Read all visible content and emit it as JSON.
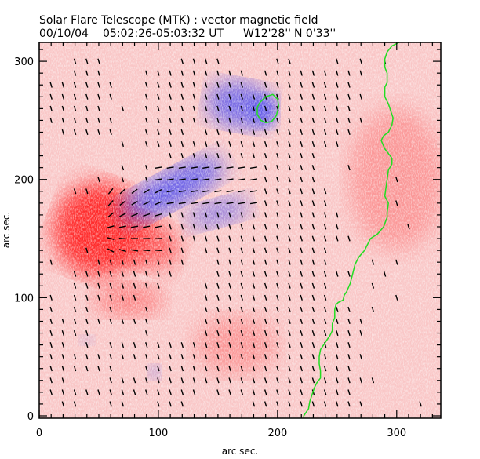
{
  "chart_data": {
    "type": "heatmap",
    "title": "Solar Flare Telescope (MTK) : vector magnetic field",
    "subtitle_date": "00/10/04",
    "subtitle_time": "05:02:26-05:03:32 UT",
    "subtitle_position_w": "W12'28''",
    "subtitle_position_n": "N 0'33''",
    "xlabel": "arc sec.",
    "ylabel": "arc sec.",
    "xlim": [
      0,
      337
    ],
    "ylim": [
      -2,
      316
    ],
    "xticks": [
      0,
      100,
      200,
      300
    ],
    "yticks": [
      0,
      100,
      200,
      300
    ],
    "xtick_labels": [
      "0",
      "100",
      "200",
      "300"
    ],
    "ytick_labels": [
      "0",
      "100",
      "200",
      "300"
    ],
    "minor_tick_step": 10,
    "colors": {
      "positive_polarity": "#ff2a2a",
      "negative_polarity": "#4a4af0",
      "background_positive": "#f7b8b8",
      "contour": "#22dd22",
      "vectors": "#000000"
    },
    "polarity_regions": [
      {
        "name": "positive-core",
        "polarity": "positive",
        "cx": 50,
        "cy": 158,
        "rx": 38,
        "ry": 40,
        "angle": 20,
        "strength": 1.0
      },
      {
        "name": "positive-tail",
        "polarity": "positive",
        "cx": 80,
        "cy": 150,
        "rx": 40,
        "ry": 22,
        "angle": 20,
        "strength": 0.7
      },
      {
        "name": "positive-weak-south",
        "polarity": "positive",
        "cx": 75,
        "cy": 98,
        "rx": 30,
        "ry": 14,
        "angle": 0,
        "strength": 0.45
      },
      {
        "name": "positive-weak-east",
        "polarity": "positive",
        "cx": 300,
        "cy": 200,
        "rx": 40,
        "ry": 60,
        "angle": 0,
        "strength": 0.3
      },
      {
        "name": "positive-weak-mid",
        "polarity": "positive",
        "cx": 165,
        "cy": 60,
        "rx": 35,
        "ry": 25,
        "angle": 0,
        "strength": 0.3
      },
      {
        "name": "negative-main",
        "polarity": "negative",
        "cx": 112,
        "cy": 192,
        "rx": 48,
        "ry": 15,
        "angle": -28,
        "strength": 0.85
      },
      {
        "name": "negative-tail",
        "polarity": "negative",
        "cx": 150,
        "cy": 172,
        "rx": 28,
        "ry": 11,
        "angle": -15,
        "strength": 0.6
      },
      {
        "name": "negative-north",
        "polarity": "negative",
        "cx": 168,
        "cy": 263,
        "rx": 28,
        "ry": 20,
        "angle": 10,
        "strength": 0.75
      },
      {
        "name": "negative-north-core",
        "polarity": "negative",
        "cx": 188,
        "cy": 258,
        "rx": 12,
        "ry": 14,
        "angle": 0,
        "strength": 0.7
      },
      {
        "name": "negative-small-1",
        "polarity": "negative",
        "cx": 97,
        "cy": 37,
        "rx": 5,
        "ry": 6,
        "angle": 0,
        "strength": 0.5
      },
      {
        "name": "negative-small-2",
        "polarity": "negative",
        "cx": 40,
        "cy": 64,
        "rx": 6,
        "ry": 4,
        "angle": 0,
        "strength": 0.3
      }
    ],
    "neutral_line_contour": [
      [
        302,
        316
      ],
      [
        296,
        313
      ],
      [
        292,
        308
      ],
      [
        290,
        302
      ],
      [
        290,
        295
      ],
      [
        292,
        290
      ],
      [
        292,
        282
      ],
      [
        290,
        278
      ],
      [
        290,
        270
      ],
      [
        293,
        264
      ],
      [
        295,
        258
      ],
      [
        297,
        252
      ],
      [
        296,
        246
      ],
      [
        293,
        240
      ],
      [
        289,
        237
      ],
      [
        287,
        233
      ],
      [
        290,
        226
      ],
      [
        293,
        222
      ],
      [
        296,
        218
      ],
      [
        296,
        213
      ],
      [
        293,
        208
      ],
      [
        292,
        200
      ],
      [
        291,
        193
      ],
      [
        290,
        186
      ],
      [
        293,
        180
      ],
      [
        292,
        172
      ],
      [
        292,
        168
      ],
      [
        289,
        160
      ],
      [
        284,
        154
      ],
      [
        278,
        150
      ],
      [
        273,
        140
      ],
      [
        268,
        134
      ],
      [
        265,
        128
      ],
      [
        263,
        120
      ],
      [
        261,
        112
      ],
      [
        258,
        105
      ],
      [
        256,
        102
      ],
      [
        255,
        98
      ],
      [
        251,
        96
      ],
      [
        249,
        94
      ],
      [
        248,
        90
      ],
      [
        248,
        83
      ],
      [
        246,
        78
      ],
      [
        246,
        72
      ],
      [
        244,
        68
      ],
      [
        240,
        62
      ],
      [
        236,
        56
      ],
      [
        235,
        50
      ],
      [
        235,
        44
      ],
      [
        236,
        38
      ],
      [
        236,
        32
      ],
      [
        233,
        28
      ],
      [
        231,
        24
      ],
      [
        229,
        18
      ],
      [
        227,
        12
      ],
      [
        226,
        6
      ],
      [
        222,
        0
      ],
      [
        222,
        -2
      ]
    ],
    "neutral_line_loop": [
      [
        185,
        265
      ],
      [
        190,
        270
      ],
      [
        196,
        272
      ],
      [
        200,
        268
      ],
      [
        201,
        262
      ],
      [
        199,
        254
      ],
      [
        195,
        249
      ],
      [
        190,
        248
      ],
      [
        186,
        250
      ],
      [
        183,
        255
      ],
      [
        183,
        261
      ],
      [
        185,
        265
      ]
    ],
    "vectors": {
      "grid_step": 10,
      "rows": [
        {
          "y": 300,
          "xs": [
            30,
            40,
            50,
            120,
            130,
            140,
            150,
            200,
            210,
            250,
            270,
            290
          ]
        },
        {
          "y": 290,
          "xs": [
            30,
            40,
            50,
            90,
            100,
            110,
            120,
            130,
            140,
            150,
            160,
            170,
            190,
            200,
            210,
            220,
            230,
            240,
            250,
            260,
            270
          ]
        },
        {
          "y": 280,
          "xs": [
            10,
            20,
            30,
            40,
            50,
            60,
            90,
            100,
            110,
            120,
            130,
            140,
            150,
            160,
            170,
            190,
            200,
            210,
            220,
            230,
            240,
            250,
            260
          ]
        },
        {
          "y": 270,
          "xs": [
            10,
            20,
            30,
            40,
            50,
            60,
            90,
            100,
            110,
            120,
            130,
            140,
            150,
            160,
            170,
            180,
            190,
            200,
            210,
            220,
            230,
            240,
            250,
            260,
            270
          ]
        },
        {
          "y": 260,
          "xs": [
            10,
            20,
            30,
            40,
            50,
            70,
            90,
            100,
            110,
            120,
            130,
            140,
            150,
            160,
            170,
            180,
            190,
            200,
            210,
            220,
            230,
            240,
            250,
            260
          ]
        },
        {
          "y": 250,
          "xs": [
            10,
            20,
            30,
            40,
            50,
            60,
            90,
            100,
            110,
            120,
            130,
            140,
            150,
            160,
            170,
            180,
            190,
            200,
            210,
            220,
            230,
            240,
            250,
            260,
            270
          ]
        },
        {
          "y": 240,
          "xs": [
            20,
            30,
            40,
            50,
            60,
            90,
            100,
            110,
            120,
            140,
            150,
            160,
            170,
            180,
            190,
            200,
            210,
            220,
            230,
            240,
            250,
            260
          ]
        },
        {
          "y": 230,
          "xs": [
            70,
            90,
            100,
            110,
            120,
            130,
            140,
            150,
            160,
            170,
            180,
            190,
            200,
            210,
            220,
            230,
            240,
            250
          ]
        },
        {
          "y": 220,
          "xs": [
            110,
            120,
            130,
            140,
            150,
            160,
            170,
            180,
            190,
            200,
            210,
            220,
            230
          ]
        },
        {
          "y": 210,
          "xs": [
            70,
            90,
            100,
            110,
            120,
            130,
            140,
            150,
            160,
            170,
            180,
            190,
            200,
            210,
            220,
            230,
            260
          ]
        },
        {
          "y": 200,
          "xs": [
            50,
            70,
            90,
            100,
            110,
            120,
            130,
            140,
            150,
            160,
            170,
            180,
            190,
            200,
            210,
            220,
            230,
            300
          ]
        },
        {
          "y": 190,
          "xs": [
            30,
            40,
            60,
            70,
            80,
            90,
            100,
            110,
            120,
            130,
            140,
            150,
            160,
            170,
            180,
            190,
            200,
            210,
            220,
            230,
            240
          ]
        },
        {
          "y": 180,
          "xs": [
            60,
            70,
            80,
            90,
            100,
            110,
            120,
            130,
            140,
            150,
            160,
            170,
            180,
            190,
            200,
            210,
            220,
            230,
            240,
            300
          ]
        },
        {
          "y": 170,
          "xs": [
            60,
            70,
            80,
            90,
            100,
            110,
            120,
            130,
            140,
            150,
            160,
            170,
            180,
            190,
            200,
            210,
            220,
            230,
            240,
            250
          ]
        },
        {
          "y": 160,
          "xs": [
            60,
            70,
            80,
            90,
            100,
            110,
            120,
            130,
            140,
            150,
            160,
            170,
            180,
            190,
            200,
            210,
            220,
            230,
            240,
            250,
            310
          ]
        },
        {
          "y": 150,
          "xs": [
            60,
            70,
            80,
            90,
            100,
            110,
            120,
            130,
            140,
            150,
            160,
            170,
            180,
            190,
            200,
            210,
            220,
            230,
            240,
            250,
            260
          ]
        },
        {
          "y": 140,
          "xs": [
            40,
            60,
            70,
            80,
            90,
            100,
            110,
            120,
            140,
            150,
            160,
            170,
            180,
            190,
            200,
            210,
            220,
            230,
            240
          ]
        },
        {
          "y": 130,
          "xs": [
            10,
            50,
            60,
            70,
            80,
            90,
            100,
            110,
            120,
            150,
            160,
            170,
            180,
            190,
            200,
            210,
            220,
            230,
            240,
            280,
            300
          ]
        },
        {
          "y": 120,
          "xs": [
            30,
            40,
            50,
            60,
            70,
            80,
            90,
            100,
            110,
            150,
            160,
            170,
            180,
            190,
            200,
            210,
            220,
            230,
            240,
            250,
            260,
            290
          ]
        },
        {
          "y": 110,
          "xs": [
            30,
            40,
            50,
            60,
            70,
            80,
            90,
            100,
            140,
            150,
            160,
            170,
            180,
            190,
            200,
            210,
            220,
            230,
            240,
            280
          ]
        },
        {
          "y": 100,
          "xs": [
            10,
            30,
            40,
            50,
            60,
            70,
            80,
            140,
            150,
            160,
            170,
            180,
            190,
            200,
            210,
            220,
            230,
            240,
            300
          ]
        },
        {
          "y": 90,
          "xs": [
            10,
            30,
            40,
            60,
            90,
            140,
            150,
            160,
            170,
            180,
            190,
            200,
            210,
            220,
            230,
            240,
            250,
            260,
            280
          ]
        },
        {
          "y": 80,
          "xs": [
            10,
            20,
            30,
            40,
            50,
            60,
            70,
            80,
            90,
            140,
            150,
            160,
            170,
            180,
            190,
            200,
            210,
            220,
            230,
            240,
            250,
            260,
            270
          ]
        },
        {
          "y": 70,
          "xs": [
            10,
            20,
            30,
            40,
            90,
            140,
            150,
            160,
            170,
            180,
            190,
            200,
            210,
            220,
            230,
            240,
            250,
            260,
            270
          ]
        },
        {
          "y": 60,
          "xs": [
            10,
            20,
            40,
            60,
            70,
            80,
            90,
            100,
            110,
            120,
            130,
            140,
            150,
            160,
            170,
            180,
            190,
            200,
            210,
            220,
            230,
            240,
            250,
            260
          ]
        },
        {
          "y": 50,
          "xs": [
            10,
            20,
            30,
            40,
            50,
            60,
            70,
            80,
            90,
            100,
            110,
            120,
            130,
            140,
            150,
            160,
            170,
            180,
            190,
            200,
            210,
            220,
            230,
            240,
            250,
            260,
            270
          ]
        },
        {
          "y": 40,
          "xs": [
            10,
            20,
            30,
            40,
            50,
            60,
            90,
            100,
            110,
            120,
            130,
            140,
            150,
            160,
            170,
            180,
            190,
            200,
            210,
            220,
            230,
            240,
            250,
            260
          ]
        },
        {
          "y": 30,
          "xs": [
            10,
            20,
            60,
            70,
            80,
            90,
            100,
            110,
            120,
            130,
            140,
            150,
            160,
            170,
            180,
            190,
            200,
            210,
            220,
            230,
            240,
            250,
            260,
            270,
            280
          ]
        },
        {
          "y": 20,
          "xs": [
            10,
            20,
            30,
            40,
            50,
            60,
            70,
            80,
            90,
            100,
            110,
            120,
            130,
            150,
            160,
            170,
            180,
            190,
            200,
            210,
            220,
            230,
            240,
            250,
            260
          ]
        },
        {
          "y": 10,
          "xs": [
            20,
            30,
            60,
            70,
            100,
            110,
            120,
            180,
            190,
            200,
            210,
            220,
            230,
            240,
            250,
            260,
            270,
            320
          ]
        }
      ]
    }
  }
}
